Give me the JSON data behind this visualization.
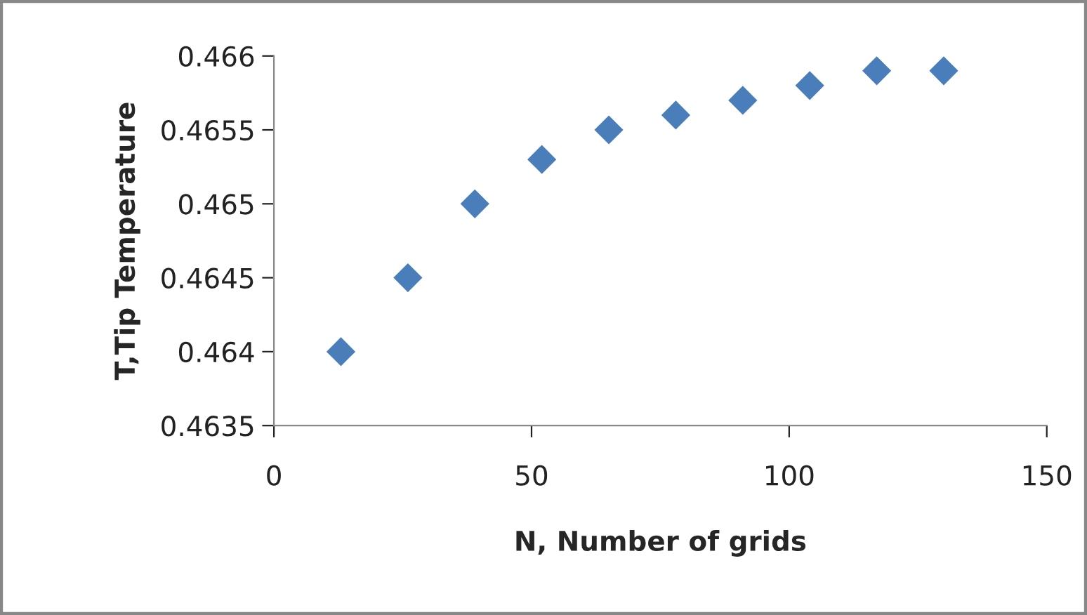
{
  "chart_data": {
    "type": "scatter",
    "xlabel": "N, Number of grids",
    "ylabel": "T,Tip Temperature",
    "x": [
      13,
      26,
      39,
      52,
      65,
      78,
      91,
      104,
      117,
      130
    ],
    "series": [
      {
        "color": "#4a7ebb",
        "values": [
          0.464,
          0.4645,
          0.465,
          0.4653,
          0.4655,
          0.4656,
          0.4657,
          0.4658,
          0.4659,
          0.4659
        ]
      }
    ],
    "xlim": [
      0,
      150
    ],
    "xticks": [
      0,
      50,
      100,
      150
    ],
    "ylim": [
      0.4635,
      0.466
    ],
    "yticks": [
      {
        "value": 0.4635,
        "label": "0.4635"
      },
      {
        "value": 0.464,
        "label": "0.464"
      },
      {
        "value": 0.4645,
        "label": "0.4645"
      },
      {
        "value": 0.465,
        "label": "0.465"
      },
      {
        "value": 0.4655,
        "label": "0.4655"
      },
      {
        "value": 0.466,
        "label": "0.466"
      }
    ],
    "marker": "diamond",
    "grid": false
  }
}
